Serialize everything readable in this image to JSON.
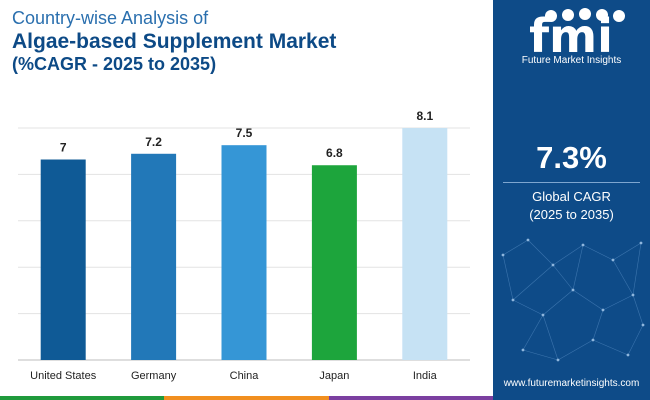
{
  "header": {
    "line1": "Country-wise Analysis of",
    "line2": "Algae-based Supplement Market",
    "line3": "(%CAGR - 2025 to 2035)"
  },
  "chart_data": {
    "type": "bar",
    "categories": [
      "United States",
      "Germany",
      "China",
      "Japan",
      "India"
    ],
    "values": [
      7,
      7.2,
      7.5,
      6.8,
      8.1
    ],
    "value_labels": [
      "7",
      "7.2",
      "7.5",
      "6.8",
      "8.1"
    ],
    "bar_colors": [
      "#0f5a96",
      "#2278b8",
      "#3596d6",
      "#1da53c",
      "#c6e2f4"
    ],
    "ylim": [
      0,
      8.1
    ],
    "grid": true,
    "legend": "none"
  },
  "sidebar": {
    "logo_mark": "fmi",
    "logo_text": "Future Market Insights",
    "kpi_value": "7.3%",
    "kpi_label_line1": "Global CAGR",
    "kpi_label_line2": "(2025 to 2035)",
    "website": "www.futuremarketinsights.com",
    "background": "#0e4b88"
  },
  "bottom_strip_colors": [
    "#1f9a3c",
    "#f18f1f",
    "#7b3fa0"
  ]
}
